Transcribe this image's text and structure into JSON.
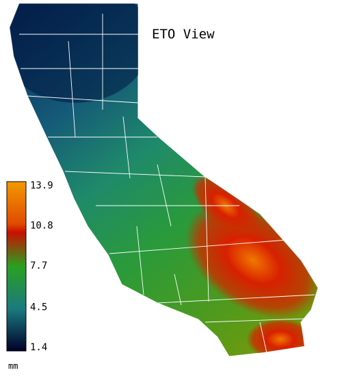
{
  "title": "ETO View",
  "legend": {
    "ticks": [
      13.9,
      10.8,
      7.7,
      4.5,
      1.4
    ],
    "unit": "mm"
  }
}
